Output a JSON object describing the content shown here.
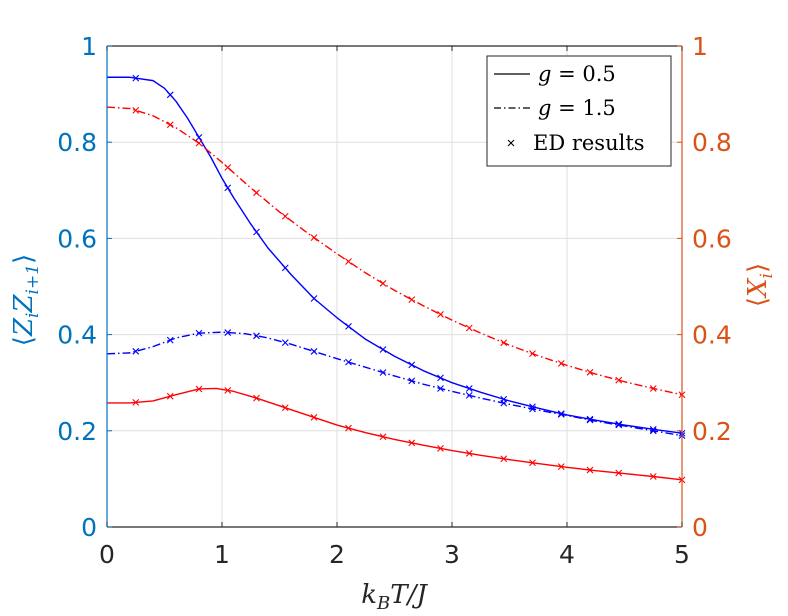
{
  "chart_data": {
    "type": "line",
    "xlabel": "k_BT/J",
    "xlabel_main": "k",
    "xlabel_sub": "B",
    "xlabel_rest": "T/J",
    "ylabel_left": "⟨Z_iZ_{i+1}⟩",
    "ylabel_left_parts": {
      "open": "⟨",
      "z1": "Z",
      "sub1": "i",
      "z2": "Z",
      "sub2": "i+1",
      "close": "⟩"
    },
    "ylabel_right": "⟨X_i⟩",
    "ylabel_right_parts": {
      "open": "⟨",
      "x": "X",
      "sub": "i",
      "close": "⟩"
    },
    "xlim": [
      0,
      5
    ],
    "ylim_left": [
      0,
      1
    ],
    "ylim_right": [
      0,
      1
    ],
    "x_ticks": [
      "0",
      "1",
      "2",
      "3",
      "4",
      "5"
    ],
    "y_left_ticks": [
      "0",
      "0.2",
      "0.4",
      "0.6",
      "0.8",
      "1"
    ],
    "y_right_ticks": [
      "0",
      "0.2",
      "0.4",
      "0.6",
      "0.8",
      "1"
    ],
    "grid": true,
    "colors": {
      "left_axis": "#0072BD",
      "right_axis": "#D95319",
      "blue": "#0000FF",
      "red": "#FF0000"
    },
    "legend": {
      "position": "top-right",
      "entries": [
        {
          "label": "g = 0.5",
          "label_var": "g",
          "label_val": " = 0.5",
          "style": "solid"
        },
        {
          "label": "g = 1.5",
          "label_var": "g",
          "label_val": " = 1.5",
          "style": "dashdot"
        },
        {
          "label": "ED results",
          "style": "marker-x"
        }
      ]
    },
    "series": [
      {
        "name": "ZZ g=0.5",
        "axis": "left",
        "color": "blue",
        "style": "solid",
        "x": [
          0,
          0.2,
          0.4,
          0.5,
          0.6,
          0.7,
          0.8,
          0.9,
          1.0,
          1.1,
          1.25,
          1.4,
          1.6,
          1.8,
          2.0,
          2.25,
          2.5,
          2.75,
          3.0,
          3.25,
          3.5,
          3.75,
          4.0,
          4.25,
          4.5,
          4.75,
          5.0
        ],
        "y": [
          0.935,
          0.935,
          0.928,
          0.912,
          0.885,
          0.85,
          0.81,
          0.77,
          0.725,
          0.685,
          0.63,
          0.58,
          0.525,
          0.475,
          0.435,
          0.39,
          0.355,
          0.325,
          0.3,
          0.28,
          0.262,
          0.247,
          0.233,
          0.222,
          0.212,
          0.203,
          0.195
        ]
      },
      {
        "name": "ZZ g=1.5",
        "axis": "left",
        "color": "blue",
        "style": "dashdot",
        "x": [
          0,
          0.2,
          0.4,
          0.6,
          0.8,
          1.0,
          1.2,
          1.4,
          1.6,
          1.8,
          2.0,
          2.25,
          2.5,
          2.75,
          3.0,
          3.25,
          3.5,
          3.75,
          4.0,
          4.25,
          4.5,
          4.75,
          5.0
        ],
        "y": [
          0.36,
          0.362,
          0.375,
          0.393,
          0.403,
          0.405,
          0.402,
          0.393,
          0.38,
          0.365,
          0.35,
          0.332,
          0.314,
          0.297,
          0.282,
          0.268,
          0.255,
          0.243,
          0.232,
          0.22,
          0.21,
          0.2,
          0.19
        ]
      },
      {
        "name": "X g=0.5",
        "axis": "right",
        "color": "red",
        "style": "solid",
        "x": [
          0,
          0.2,
          0.4,
          0.6,
          0.8,
          0.95,
          1.1,
          1.3,
          1.5,
          1.75,
          2.0,
          2.25,
          2.5,
          2.75,
          3.0,
          3.25,
          3.5,
          3.75,
          4.0,
          4.25,
          4.5,
          4.75,
          5.0
        ],
        "y": [
          0.258,
          0.258,
          0.262,
          0.275,
          0.287,
          0.288,
          0.282,
          0.268,
          0.252,
          0.232,
          0.212,
          0.196,
          0.182,
          0.17,
          0.159,
          0.149,
          0.14,
          0.132,
          0.124,
          0.117,
          0.111,
          0.105,
          0.098
        ]
      },
      {
        "name": "X g=1.5",
        "axis": "right",
        "color": "red",
        "style": "dashdot",
        "x": [
          0,
          0.2,
          0.4,
          0.6,
          0.8,
          1.0,
          1.25,
          1.5,
          1.75,
          2.0,
          2.25,
          2.5,
          2.75,
          3.0,
          3.25,
          3.5,
          3.75,
          4.0,
          4.25,
          4.5,
          4.75,
          5.0
        ],
        "y": [
          0.873,
          0.87,
          0.855,
          0.83,
          0.798,
          0.758,
          0.705,
          0.655,
          0.61,
          0.568,
          0.528,
          0.492,
          0.46,
          0.43,
          0.403,
          0.378,
          0.356,
          0.336,
          0.318,
          0.302,
          0.288,
          0.275
        ]
      }
    ],
    "ed_points": [
      {
        "series": "ZZ g=0.5",
        "x": [
          0.25,
          0.55,
          0.8,
          1.05,
          1.3,
          1.55,
          1.8,
          2.1,
          2.4,
          2.65,
          2.9,
          3.15,
          3.45,
          3.7,
          3.95,
          4.2,
          4.45,
          4.75,
          5.0
        ]
      },
      {
        "series": "ZZ g=1.5",
        "x": [
          0.25,
          0.55,
          0.8,
          1.05,
          1.3,
          1.55,
          1.8,
          2.1,
          2.4,
          2.65,
          2.9,
          3.15,
          3.45,
          3.7,
          3.95,
          4.2,
          4.45,
          4.75,
          5.0
        ]
      },
      {
        "series": "X g=0.5",
        "x": [
          0.25,
          0.55,
          0.8,
          1.05,
          1.3,
          1.55,
          1.8,
          2.1,
          2.4,
          2.65,
          2.9,
          3.15,
          3.45,
          3.7,
          3.95,
          4.2,
          4.45,
          4.75,
          5.0
        ]
      },
      {
        "series": "X g=1.5",
        "x": [
          0.25,
          0.55,
          0.8,
          1.05,
          1.3,
          1.55,
          1.8,
          2.1,
          2.4,
          2.65,
          2.9,
          3.15,
          3.45,
          3.7,
          3.95,
          4.2,
          4.45,
          4.75,
          5.0
        ]
      }
    ]
  }
}
